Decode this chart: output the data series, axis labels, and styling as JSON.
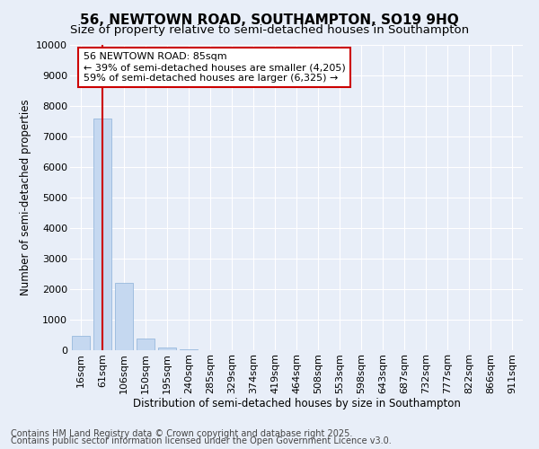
{
  "title_line1": "56, NEWTOWN ROAD, SOUTHAMPTON, SO19 9HQ",
  "title_line2": "Size of property relative to semi-detached houses in Southampton",
  "xlabel": "Distribution of semi-detached houses by size in Southampton",
  "ylabel": "Number of semi-detached properties",
  "categories": [
    "16sqm",
    "61sqm",
    "106sqm",
    "150sqm",
    "195sqm",
    "240sqm",
    "285sqm",
    "329sqm",
    "374sqm",
    "419sqm",
    "464sqm",
    "508sqm",
    "553sqm",
    "598sqm",
    "643sqm",
    "687sqm",
    "732sqm",
    "777sqm",
    "822sqm",
    "866sqm",
    "911sqm"
  ],
  "values": [
    470,
    7600,
    2200,
    370,
    100,
    30,
    0,
    0,
    0,
    0,
    0,
    0,
    0,
    0,
    0,
    0,
    0,
    0,
    0,
    0,
    0
  ],
  "bar_color": "#c5d8f0",
  "bar_edge_color": "#8ab0d8",
  "vline_x": 1,
  "vline_color": "#cc0000",
  "annotation_title": "56 NEWTOWN ROAD: 85sqm",
  "annotation_line1": "← 39% of semi-detached houses are smaller (4,205)",
  "annotation_line2": "59% of semi-detached houses are larger (6,325) →",
  "annotation_box_color": "#ffffff",
  "annotation_box_edge": "#cc0000",
  "ylim": [
    0,
    10000
  ],
  "yticks": [
    0,
    1000,
    2000,
    3000,
    4000,
    5000,
    6000,
    7000,
    8000,
    9000,
    10000
  ],
  "footnote1": "Contains HM Land Registry data © Crown copyright and database right 2025.",
  "footnote2": "Contains public sector information licensed under the Open Government Licence v3.0.",
  "bg_color": "#e8eef8",
  "grid_color": "#ffffff",
  "title_fontsize": 11,
  "subtitle_fontsize": 9.5,
  "axis_label_fontsize": 8.5,
  "tick_fontsize": 8,
  "annotation_fontsize": 8,
  "footnote_fontsize": 7
}
